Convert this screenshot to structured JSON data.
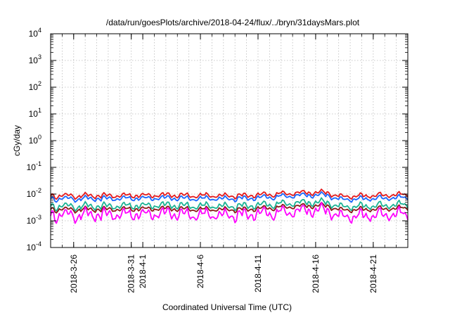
{
  "chart_data": {
    "type": "line",
    "title": "/data/run/goesPlots/archive/2018-04-24/flux/../bryn/31daysMars.plot",
    "xlabel": "Coordinated Universal Time (UTC)",
    "ylabel": "cGy/day",
    "yscale": "log",
    "ylim": [
      0.0001,
      10000
    ],
    "yticks": [
      {
        "value": 10000,
        "base": "10",
        "exp": "4"
      },
      {
        "value": 1000,
        "base": "10",
        "exp": "3"
      },
      {
        "value": 100,
        "base": "10",
        "exp": "2"
      },
      {
        "value": 10,
        "base": "10",
        "exp": "1"
      },
      {
        "value": 1,
        "base": "10",
        "exp": "0"
      },
      {
        "value": 0.1,
        "base": "10",
        "exp": "-1"
      },
      {
        "value": 0.01,
        "base": "10",
        "exp": "-2"
      },
      {
        "value": 0.001,
        "base": "10",
        "exp": "-3"
      },
      {
        "value": 0.0001,
        "base": "10",
        "exp": "-4"
      }
    ],
    "xlim": [
      "2018-03-24",
      "2018-04-24"
    ],
    "xticks": [
      "2018-3-26",
      "2018-3-31",
      "2018-4-1",
      "2018-4-6",
      "2018-4-11",
      "2018-4-16",
      "2018-4-21"
    ],
    "grid": true,
    "legend": "none",
    "series": [
      {
        "color": "#e41a1c",
        "values": [
          [
            "2018-03-24",
            0.0088
          ],
          [
            "2018-03-28",
            0.0085
          ],
          [
            "2018-04-02",
            0.0092
          ],
          [
            "2018-04-06",
            0.0088
          ],
          [
            "2018-04-10",
            0.0086
          ],
          [
            "2018-04-14",
            0.011
          ],
          [
            "2018-04-17",
            0.0115
          ],
          [
            "2018-04-18",
            0.008
          ],
          [
            "2018-04-21",
            0.0088
          ],
          [
            "2018-04-24",
            0.0098
          ]
        ]
      },
      {
        "color": "#1a66ff",
        "values": [
          [
            "2018-03-24",
            0.0068
          ],
          [
            "2018-03-28",
            0.0066
          ],
          [
            "2018-04-02",
            0.0072
          ],
          [
            "2018-04-06",
            0.0068
          ],
          [
            "2018-04-10",
            0.0067
          ],
          [
            "2018-04-14",
            0.0088
          ],
          [
            "2018-04-17",
            0.0092
          ],
          [
            "2018-04-18",
            0.0062
          ],
          [
            "2018-04-21",
            0.0068
          ],
          [
            "2018-04-24",
            0.0076
          ]
        ]
      },
      {
        "color": "#1ab394",
        "values": [
          [
            "2018-03-24",
            0.0036
          ],
          [
            "2018-03-28",
            0.0034
          ],
          [
            "2018-04-02",
            0.0039
          ],
          [
            "2018-04-06",
            0.0036
          ],
          [
            "2018-04-10",
            0.0035
          ],
          [
            "2018-04-14",
            0.0047
          ],
          [
            "2018-04-17",
            0.0049
          ],
          [
            "2018-04-18",
            0.0033
          ],
          [
            "2018-04-21",
            0.0036
          ],
          [
            "2018-04-24",
            0.0042
          ]
        ]
      },
      {
        "color": "#8b1a1a",
        "values": [
          [
            "2018-03-24",
            0.0027
          ],
          [
            "2018-03-28",
            0.0026
          ],
          [
            "2018-04-02",
            0.0029
          ],
          [
            "2018-04-06",
            0.0027
          ],
          [
            "2018-04-10",
            0.0026
          ],
          [
            "2018-04-14",
            0.0035
          ],
          [
            "2018-04-17",
            0.0037
          ],
          [
            "2018-04-18",
            0.0025
          ],
          [
            "2018-04-21",
            0.0027
          ],
          [
            "2018-04-24",
            0.0031
          ]
        ]
      },
      {
        "color": "#ff00ff",
        "values": [
          [
            "2018-03-24",
            0.0017
          ],
          [
            "2018-03-28",
            0.0016
          ],
          [
            "2018-04-02",
            0.0019
          ],
          [
            "2018-04-06",
            0.0017
          ],
          [
            "2018-04-10",
            0.0016
          ],
          [
            "2018-04-14",
            0.0023
          ],
          [
            "2018-04-17",
            0.0025
          ],
          [
            "2018-04-18",
            0.0014
          ],
          [
            "2018-04-21",
            0.0016
          ],
          [
            "2018-04-24",
            0.0019
          ]
        ]
      }
    ]
  }
}
